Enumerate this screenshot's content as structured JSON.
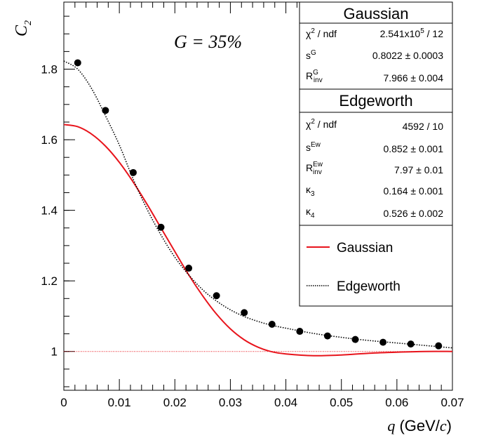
{
  "chart_data": {
    "type": "scatter",
    "annotation": "G = 35%",
    "xlabel_var": "q",
    "xlabel_unit_open": "(GeV/",
    "xlabel_unit_var": "c",
    "xlabel_unit_close": ")",
    "ylabel_base": "C",
    "ylabel_sub": "2",
    "xlim": [
      0,
      0.07
    ],
    "ylim": [
      0.89,
      1.99
    ],
    "x_ticks": [
      {
        "v": 0,
        "label": "0"
      },
      {
        "v": 0.01,
        "label": "0.01"
      },
      {
        "v": 0.02,
        "label": "0.02"
      },
      {
        "v": 0.03,
        "label": "0.03"
      },
      {
        "v": 0.04,
        "label": "0.04"
      },
      {
        "v": 0.05,
        "label": "0.05"
      },
      {
        "v": 0.06,
        "label": "0.06"
      },
      {
        "v": 0.07,
        "label": "0.07"
      }
    ],
    "y_ticks": [
      {
        "v": 1.0,
        "label": "1"
      },
      {
        "v": 1.2,
        "label": "1.2"
      },
      {
        "v": 1.4,
        "label": "1.4"
      },
      {
        "v": 1.6,
        "label": "1.6"
      },
      {
        "v": 1.8,
        "label": "1.8"
      }
    ],
    "data_points": [
      {
        "x": 0.0025,
        "y": 1.818
      },
      {
        "x": 0.0075,
        "y": 1.683
      },
      {
        "x": 0.0125,
        "y": 1.507
      },
      {
        "x": 0.0175,
        "y": 1.352
      },
      {
        "x": 0.0225,
        "y": 1.236
      },
      {
        "x": 0.0275,
        "y": 1.158
      },
      {
        "x": 0.0325,
        "y": 1.11
      },
      {
        "x": 0.0375,
        "y": 1.077
      },
      {
        "x": 0.0425,
        "y": 1.057
      },
      {
        "x": 0.0475,
        "y": 1.044
      },
      {
        "x": 0.0525,
        "y": 1.034
      },
      {
        "x": 0.0575,
        "y": 1.026
      },
      {
        "x": 0.0625,
        "y": 1.021
      },
      {
        "x": 0.0675,
        "y": 1.016
      }
    ],
    "gaussian_curve": {
      "color": "#e8141c",
      "x": [
        0,
        0.0025,
        0.005,
        0.0075,
        0.01,
        0.0125,
        0.015,
        0.0175,
        0.02,
        0.0225,
        0.025,
        0.0275,
        0.03,
        0.0325,
        0.035,
        0.0375,
        0.04,
        0.045,
        0.05,
        0.055,
        0.06,
        0.065,
        0.07
      ],
      "y": [
        1.643,
        1.637,
        1.616,
        1.582,
        1.536,
        1.48,
        1.417,
        1.35,
        1.283,
        1.217,
        1.158,
        1.106,
        1.064,
        1.033,
        1.012,
        0.999,
        0.993,
        0.988,
        0.99,
        0.995,
        0.998,
        1.0,
        1.0
      ]
    },
    "edgeworth_curve": {
      "color": "#000000",
      "x": [
        0,
        0.0025,
        0.005,
        0.0075,
        0.01,
        0.0125,
        0.015,
        0.0175,
        0.02,
        0.0225,
        0.025,
        0.0275,
        0.03,
        0.0325,
        0.035,
        0.0375,
        0.04,
        0.045,
        0.05,
        0.055,
        0.06,
        0.065,
        0.07
      ],
      "y": [
        1.823,
        1.8,
        1.745,
        1.668,
        1.585,
        1.488,
        1.403,
        1.33,
        1.267,
        1.217,
        1.175,
        1.143,
        1.118,
        1.099,
        1.085,
        1.074,
        1.066,
        1.051,
        1.04,
        1.031,
        1.024,
        1.017,
        1.01
      ]
    },
    "baseline": {
      "y": 1.0,
      "color": "#e8141c"
    }
  },
  "stats": {
    "gaussian": {
      "title": "Gaussian",
      "rows": [
        {
          "label": "χ² / ndf",
          "value": "2.541x10⁵ / 12"
        },
        {
          "label": "sᴳ",
          "value": "0.8022 ± 0.0003"
        },
        {
          "label": "R_inv^G",
          "value": "7.966 ± 0.004"
        }
      ]
    },
    "edgeworth": {
      "title": "Edgeworth",
      "rows": [
        {
          "label": "χ² / ndf",
          "value": "4592 / 10"
        },
        {
          "label": "s^Ew",
          "value": "0.852 ± 0.001"
        },
        {
          "label": "R_inv^Ew",
          "value": "7.97 ± 0.01"
        },
        {
          "label": "κ₃",
          "value": "0.164 ± 0.001"
        },
        {
          "label": "κ₄",
          "value": "0.526 ± 0.002"
        }
      ]
    }
  },
  "legend": {
    "entries": [
      {
        "label": "Gaussian",
        "style": "solid",
        "color": "#e8141c"
      },
      {
        "label": "Edgeworth",
        "style": "dotted",
        "color": "#000000"
      }
    ]
  }
}
